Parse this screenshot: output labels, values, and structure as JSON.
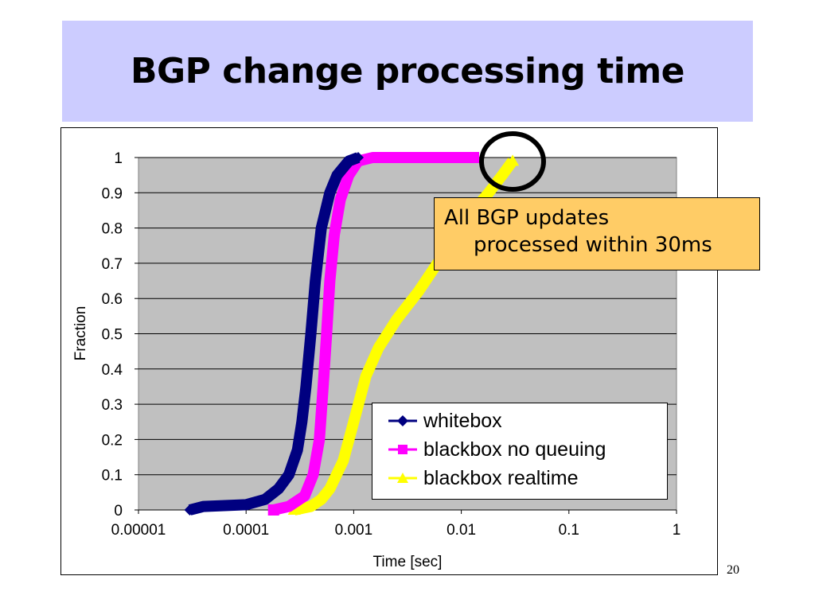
{
  "slide": {
    "title": "BGP change processing time",
    "number": "20"
  },
  "callout": {
    "line1": "All BGP updates",
    "line2": "processed within 30ms"
  },
  "colors": {
    "title_bg": "#ccccff",
    "plot_bg": "#c0c0c0",
    "callout_bg": "#ffcc66",
    "highlight_circle": "#000000"
  },
  "chart_data": {
    "type": "line",
    "xlabel": "Time [sec]",
    "ylabel": "Fraction",
    "x_scale": "log",
    "xlim": [
      1e-05,
      1
    ],
    "ylim": [
      0,
      1
    ],
    "x_ticks": [
      "0.00001",
      "0.0001",
      "0.001",
      "0.01",
      "0.1",
      "1"
    ],
    "y_ticks": [
      "0",
      "0.1",
      "0.2",
      "0.3",
      "0.4",
      "0.5",
      "0.6",
      "0.7",
      "0.8",
      "0.9",
      "1"
    ],
    "grid": "horizontal",
    "legend_position": "bottom-right",
    "series": [
      {
        "name": "whitebox",
        "color": "#000080",
        "marker": "diamond",
        "points": [
          [
            3e-05,
            0
          ],
          [
            4e-05,
            0.01
          ],
          [
            0.0001,
            0.015
          ],
          [
            0.00015,
            0.03
          ],
          [
            0.0002,
            0.06
          ],
          [
            0.00025,
            0.1
          ],
          [
            0.0003,
            0.17
          ],
          [
            0.00033,
            0.25
          ],
          [
            0.00036,
            0.35
          ],
          [
            0.0004,
            0.5
          ],
          [
            0.00044,
            0.65
          ],
          [
            0.0005,
            0.8
          ],
          [
            0.0006,
            0.9
          ],
          [
            0.0007,
            0.95
          ],
          [
            0.0009,
            0.99
          ],
          [
            0.0011,
            1.0
          ]
        ]
      },
      {
        "name": "blackbox no queuing",
        "color": "#ff00ff",
        "marker": "square",
        "points": [
          [
            0.00018,
            0
          ],
          [
            0.00025,
            0.01
          ],
          [
            0.00035,
            0.04
          ],
          [
            0.00042,
            0.1
          ],
          [
            0.00048,
            0.2
          ],
          [
            0.00052,
            0.35
          ],
          [
            0.00056,
            0.5
          ],
          [
            0.0006,
            0.65
          ],
          [
            0.00066,
            0.78
          ],
          [
            0.00075,
            0.88
          ],
          [
            0.0009,
            0.95
          ],
          [
            0.0011,
            0.99
          ],
          [
            0.0015,
            1.0
          ],
          [
            0.013,
            1.0
          ]
        ]
      },
      {
        "name": "blackbox realtime",
        "color": "#ffff00",
        "marker": "triangle",
        "points": [
          [
            0.00028,
            0
          ],
          [
            0.0004,
            0.01
          ],
          [
            0.0005,
            0.03
          ],
          [
            0.0006,
            0.06
          ],
          [
            0.0008,
            0.14
          ],
          [
            0.001,
            0.25
          ],
          [
            0.0013,
            0.38
          ],
          [
            0.0017,
            0.46
          ],
          [
            0.0025,
            0.54
          ],
          [
            0.004,
            0.62
          ],
          [
            0.006,
            0.7
          ],
          [
            0.009,
            0.78
          ],
          [
            0.013,
            0.85
          ],
          [
            0.018,
            0.9
          ],
          [
            0.024,
            0.95
          ],
          [
            0.03,
            0.99
          ]
        ]
      }
    ]
  }
}
